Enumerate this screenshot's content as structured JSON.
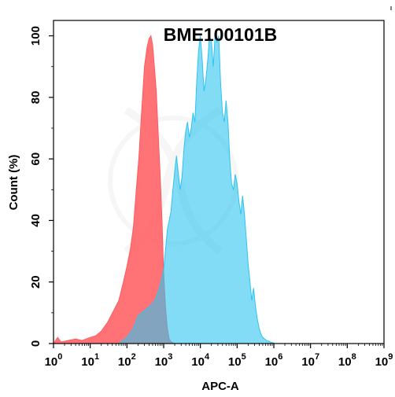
{
  "chart_data": {
    "type": "area",
    "title": "BME100101B",
    "xlabel": "APC-A",
    "ylabel": "Count (%)",
    "xscale": "log",
    "xlim": [
      1,
      1000000000
    ],
    "ylim": [
      0,
      105
    ],
    "x_ticks": [
      {
        "base": "10",
        "exp": "0",
        "value": 1
      },
      {
        "base": "10",
        "exp": "1",
        "value": 10
      },
      {
        "base": "10",
        "exp": "2",
        "value": 100
      },
      {
        "base": "10",
        "exp": "3",
        "value": 1000
      },
      {
        "base": "10",
        "exp": "4",
        "value": 10000
      },
      {
        "base": "10",
        "exp": "5",
        "value": 100000
      },
      {
        "base": "10",
        "exp": "6",
        "value": 1000000
      },
      {
        "base": "10",
        "exp": "7",
        "value": 10000000
      },
      {
        "base": "10",
        "exp": "8",
        "value": 100000000
      },
      {
        "base": "10",
        "exp": "9",
        "value": 1000000000
      }
    ],
    "y_ticks": [
      "0",
      "20",
      "40",
      "60",
      "80",
      "100"
    ],
    "grid": false,
    "series": [
      {
        "color": "#ff5a5f",
        "opacity": 0.85,
        "points": [
          [
            1,
            0
          ],
          [
            1.3,
            2
          ],
          [
            1.6,
            0.5
          ],
          [
            2.5,
            1
          ],
          [
            4,
            1.5
          ],
          [
            6,
            1
          ],
          [
            10,
            2
          ],
          [
            14,
            2.5
          ],
          [
            20,
            4
          ],
          [
            30,
            7
          ],
          [
            45,
            11
          ],
          [
            60,
            14
          ],
          [
            80,
            20
          ],
          [
            100,
            25
          ],
          [
            125,
            31
          ],
          [
            150,
            38
          ],
          [
            180,
            50
          ],
          [
            210,
            60
          ],
          [
            250,
            75
          ],
          [
            300,
            90
          ],
          [
            350,
            96
          ],
          [
            400,
            99
          ],
          [
            450,
            100
          ],
          [
            500,
            97
          ],
          [
            560,
            90
          ],
          [
            630,
            82
          ],
          [
            710,
            68
          ],
          [
            800,
            55
          ],
          [
            900,
            40
          ],
          [
            1000,
            23
          ],
          [
            1120,
            12
          ],
          [
            1260,
            5
          ],
          [
            1410,
            1.5
          ],
          [
            1600,
            0.5
          ],
          [
            2000,
            0
          ]
        ]
      },
      {
        "color": "#2ec4f0",
        "opacity": 0.6,
        "points": [
          [
            60,
            0
          ],
          [
            100,
            2
          ],
          [
            150,
            5
          ],
          [
            200,
            9
          ],
          [
            250,
            10
          ],
          [
            320,
            11
          ],
          [
            400,
            12
          ],
          [
            500,
            13
          ],
          [
            630,
            15
          ],
          [
            800,
            19
          ],
          [
            1000,
            24
          ],
          [
            1260,
            37
          ],
          [
            1580,
            43
          ],
          [
            1780,
            50
          ],
          [
            2000,
            56
          ],
          [
            2240,
            61
          ],
          [
            2510,
            55
          ],
          [
            2820,
            50
          ],
          [
            3160,
            54
          ],
          [
            3550,
            63
          ],
          [
            3980,
            69
          ],
          [
            4470,
            72
          ],
          [
            5010,
            67
          ],
          [
            5620,
            70
          ],
          [
            6310,
            75
          ],
          [
            7080,
            72
          ],
          [
            7940,
            85
          ],
          [
            8910,
            95
          ],
          [
            10000,
            100
          ],
          [
            11220,
            92
          ],
          [
            12590,
            82
          ],
          [
            14130,
            86
          ],
          [
            15850,
            92
          ],
          [
            17780,
            100
          ],
          [
            19950,
            98
          ],
          [
            22390,
            90
          ],
          [
            25120,
            100
          ],
          [
            28180,
            98
          ],
          [
            31620,
            100
          ],
          [
            35480,
            85
          ],
          [
            39810,
            75
          ],
          [
            44670,
            72
          ],
          [
            50120,
            79
          ],
          [
            56230,
            72
          ],
          [
            63100,
            60
          ],
          [
            70790,
            52
          ],
          [
            79430,
            50
          ],
          [
            89130,
            55
          ],
          [
            100000,
            52
          ],
          [
            112200,
            46
          ],
          [
            125900,
            42
          ],
          [
            141300,
            48
          ],
          [
            158500,
            42
          ],
          [
            177800,
            34
          ],
          [
            199500,
            26
          ],
          [
            223900,
            20
          ],
          [
            251200,
            14
          ],
          [
            281800,
            18
          ],
          [
            316200,
            12
          ],
          [
            354800,
            8
          ],
          [
            398100,
            5
          ],
          [
            446700,
            3
          ],
          [
            501200,
            2
          ],
          [
            562300,
            1.5
          ],
          [
            631000,
            1
          ],
          [
            707900,
            0.8
          ],
          [
            794300,
            0.5
          ],
          [
            891300,
            0.3
          ],
          [
            1000000,
            0.2
          ]
        ]
      }
    ]
  }
}
